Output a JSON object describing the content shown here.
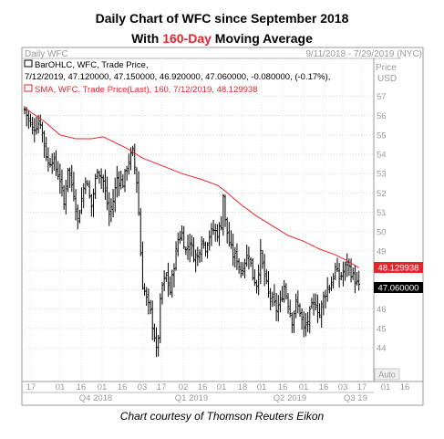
{
  "title_line1": "Daily Chart of WFC since September 2018",
  "title_line2_prefix": "With ",
  "title_line2_highlight": "160-Day",
  "title_line2_suffix": " Moving Average",
  "caption": "Chart courtesy of Thomson Reuters Eikon",
  "colors": {
    "sma": "#e8242a",
    "price_box": "#000000",
    "sma_box": "#e8242a",
    "grid": "#cccccc",
    "bars": "#000000"
  },
  "panel": {
    "label": "Daily WFC",
    "date_range": "9/11/2018 - 7/29/2019 (NYC)",
    "price_label": "Price",
    "usd_label": "USD",
    "auto_label": "Auto",
    "legend_line1": "BarOHLC, WFC, Trade Price,",
    "legend_line2": "7/12/2019, 47.120000, 47.150000, 46.920000, 47.060000, -0.080000, (-0.17%),",
    "legend_line3": "SMA, WFC, Trade Price(Last), 160, 7/12/2019, 48.129938"
  },
  "chart_data": {
    "type": "ohlc",
    "ylim": [
      43,
      58
    ],
    "yticks": [
      44,
      45,
      46,
      47,
      48,
      49,
      50,
      51,
      52,
      53,
      54,
      55,
      56,
      57
    ],
    "xtick_labels": [
      "17",
      "01",
      "16",
      "01",
      "16",
      "03",
      "17",
      "02",
      "16",
      "01",
      "18",
      "01",
      "16",
      "01",
      "16",
      "03",
      "17",
      "01",
      "16"
    ],
    "quarter_labels": [
      "Q4 2018",
      "Q1 2019",
      "Q2 2019",
      "Q3 19"
    ],
    "last_price": "47.060000",
    "sma_value": "48.129938",
    "price_path": [
      [
        0,
        56.3
      ],
      [
        4,
        55.3
      ],
      [
        8,
        55.7
      ],
      [
        10,
        54.5
      ],
      [
        12,
        53.5
      ],
      [
        14,
        53.8
      ],
      [
        18,
        52.7
      ],
      [
        20,
        51.4
      ],
      [
        22,
        53.3
      ],
      [
        25,
        52.0
      ],
      [
        27,
        50.6
      ],
      [
        29,
        51.7
      ],
      [
        31,
        52.8
      ],
      [
        34,
        51.3
      ],
      [
        37,
        53.3
      ],
      [
        40,
        52.6
      ],
      [
        43,
        50.9
      ],
      [
        45,
        51.6
      ],
      [
        47,
        52.8
      ],
      [
        50,
        52.5
      ],
      [
        53,
        53.7
      ],
      [
        55,
        54.1
      ],
      [
        57,
        52.6
      ],
      [
        58,
        51.0
      ],
      [
        59,
        48.9
      ],
      [
        60,
        47.3
      ],
      [
        62,
        46.5
      ],
      [
        64,
        45.8
      ],
      [
        66,
        44.6
      ],
      [
        67,
        43.8
      ],
      [
        68,
        44.6
      ],
      [
        69,
        46.3
      ],
      [
        70,
        47.2
      ],
      [
        72,
        47.7
      ],
      [
        74,
        46.9
      ],
      [
        76,
        48.3
      ],
      [
        78,
        49.6
      ],
      [
        80,
        49.9
      ],
      [
        82,
        49.0
      ],
      [
        84,
        49.5
      ],
      [
        86,
        48.8
      ],
      [
        88,
        48.7
      ],
      [
        90,
        49.6
      ],
      [
        92,
        49.2
      ],
      [
        94,
        49.8
      ],
      [
        96,
        50.1
      ],
      [
        98,
        49.9
      ],
      [
        100,
        50.4
      ],
      [
        101,
        51.9
      ],
      [
        102,
        50.5
      ],
      [
        104,
        49.4
      ],
      [
        106,
        48.8
      ],
      [
        108,
        48.6
      ],
      [
        110,
        47.9
      ],
      [
        112,
        48.5
      ],
      [
        114,
        48.9
      ],
      [
        116,
        47.7
      ],
      [
        118,
        47.3
      ],
      [
        120,
        48.8
      ],
      [
        122,
        47.7
      ],
      [
        124,
        46.8
      ],
      [
        126,
        46.4
      ],
      [
        128,
        46.0
      ],
      [
        130,
        46.3
      ],
      [
        132,
        47.2
      ],
      [
        134,
        46.3
      ],
      [
        136,
        45.4
      ],
      [
        138,
        46.3
      ],
      [
        140,
        45.9
      ],
      [
        142,
        44.9
      ],
      [
        144,
        45.4
      ],
      [
        146,
        46.1
      ],
      [
        148,
        46.3
      ],
      [
        150,
        45.7
      ],
      [
        152,
        46.6
      ],
      [
        154,
        47.1
      ],
      [
        156,
        47.3
      ],
      [
        158,
        48.1
      ],
      [
        160,
        47.6
      ],
      [
        162,
        47.9
      ],
      [
        164,
        48.4
      ],
      [
        166,
        47.9
      ],
      [
        168,
        47.5
      ],
      [
        170,
        47.1
      ]
    ],
    "sma_path": [
      [
        0,
        56.4
      ],
      [
        10,
        55.7
      ],
      [
        18,
        55.0
      ],
      [
        26,
        54.8
      ],
      [
        34,
        54.8
      ],
      [
        40,
        54.9
      ],
      [
        46,
        54.6
      ],
      [
        52,
        54.3
      ],
      [
        60,
        53.8
      ],
      [
        70,
        53.4
      ],
      [
        80,
        53.0
      ],
      [
        90,
        52.7
      ],
      [
        98,
        52.4
      ],
      [
        102,
        52.1
      ],
      [
        110,
        51.4
      ],
      [
        118,
        50.8
      ],
      [
        126,
        50.3
      ],
      [
        134,
        49.8
      ],
      [
        142,
        49.5
      ],
      [
        150,
        49.1
      ],
      [
        158,
        48.8
      ],
      [
        164,
        48.5
      ],
      [
        170,
        48.13
      ]
    ]
  }
}
